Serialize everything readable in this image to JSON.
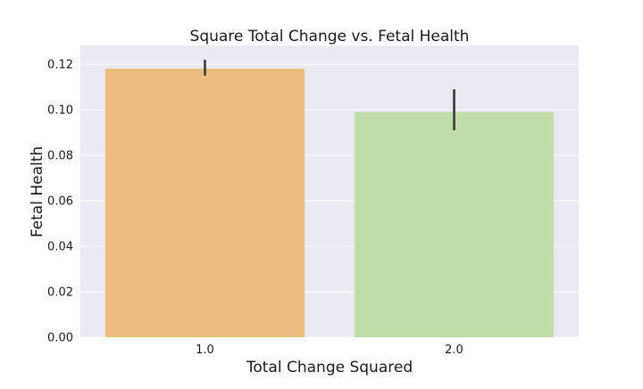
{
  "chart_data": {
    "type": "bar",
    "title": "Square Total Change vs. Fetal Health",
    "xlabel": "Total Change Squared",
    "ylabel": "Fetal Health",
    "categories": [
      "1.0",
      "2.0"
    ],
    "values": [
      0.118,
      0.099
    ],
    "error_bars": [
      [
        0.115,
        0.122
      ],
      [
        0.091,
        0.109
      ]
    ],
    "colors": [
      "#EBBD7F",
      "#C1DEA6"
    ],
    "error_bar_color": "#404040",
    "ylim": [
      0,
      0.12
    ],
    "yticks": [
      "0.00",
      "0.02",
      "0.04",
      "0.06",
      "0.08",
      "0.10",
      "0.12"
    ],
    "grid": true,
    "plot_background": "#EAEAF2"
  }
}
